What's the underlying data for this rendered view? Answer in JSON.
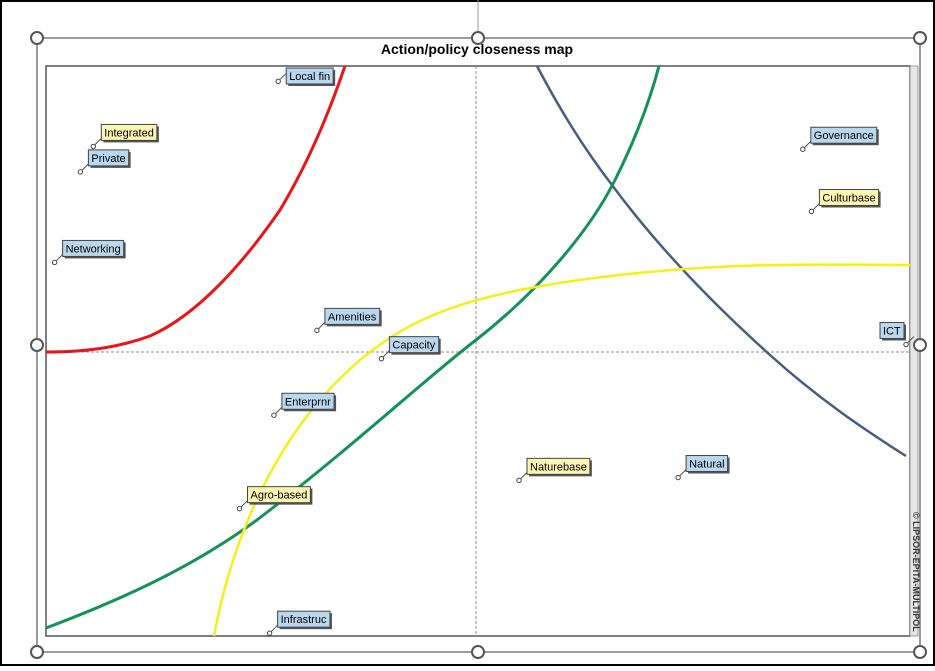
{
  "chart_data": {
    "type": "scatter",
    "title": "Action/policy closeness map",
    "copyright": "© LIPSOR-EPITA-MULTIPOL",
    "xlabel": "",
    "ylabel": "",
    "xlim": [
      -1,
      1
    ],
    "ylim": [
      -1,
      1
    ],
    "grid": false,
    "axes_cross_at_origin": true,
    "points": [
      {
        "label": "Local fin",
        "x": -0.46,
        "y": 0.96,
        "style": "blue"
      },
      {
        "label": "Integrated",
        "x": -0.89,
        "y": 0.73,
        "style": "yellow"
      },
      {
        "label": "Private",
        "x": -0.92,
        "y": 0.64,
        "style": "blue"
      },
      {
        "label": "Networking",
        "x": -0.98,
        "y": 0.32,
        "style": "blue"
      },
      {
        "label": "Amenities",
        "x": -0.37,
        "y": 0.08,
        "style": "blue"
      },
      {
        "label": "Capacity",
        "x": -0.22,
        "y": -0.02,
        "style": "blue"
      },
      {
        "label": "Enterprnr",
        "x": -0.47,
        "y": -0.22,
        "style": "blue"
      },
      {
        "label": "Agro-based",
        "x": -0.55,
        "y": -0.55,
        "style": "yellow"
      },
      {
        "label": "Infrastruc",
        "x": -0.48,
        "y": -0.99,
        "style": "blue"
      },
      {
        "label": "Governance",
        "x": 0.76,
        "y": 0.72,
        "style": "blue"
      },
      {
        "label": "Culturbase",
        "x": 0.78,
        "y": 0.5,
        "style": "yellow"
      },
      {
        "label": "ICT",
        "x": 1.0,
        "y": 0.03,
        "style": "blue"
      },
      {
        "label": "Naturebase",
        "x": 0.1,
        "y": -0.45,
        "style": "yellow"
      },
      {
        "label": "Natural",
        "x": 0.47,
        "y": -0.44,
        "style": "blue"
      }
    ],
    "curves": [
      {
        "color": "#e8151b"
      },
      {
        "color": "#475e7d"
      },
      {
        "color": "#15915a"
      },
      {
        "color": "#f5ef1a"
      }
    ]
  },
  "colors": {
    "label_blue": "#b9d7ee",
    "label_yellow": "#fbf5b4",
    "label_border": "#444444",
    "frame": "#777777"
  }
}
